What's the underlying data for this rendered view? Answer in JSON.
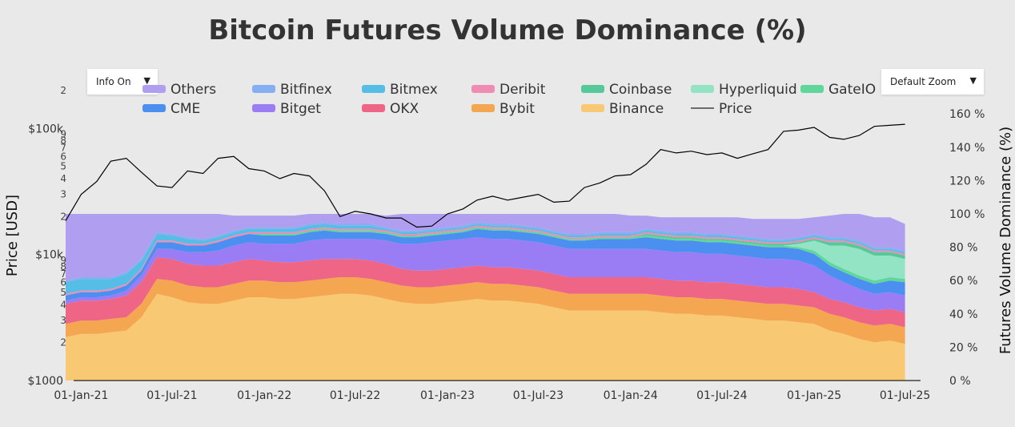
{
  "controls": {
    "info_label": "Info On",
    "zoom_label": "Default Zoom",
    "caret": "▼"
  },
  "colors": {
    "Others": "#b09ff0",
    "Bitfinex": "#86aef2",
    "Bitmex": "#56bde6",
    "Deribit": "#f08cb4",
    "Coinbase": "#55c99a",
    "Hyperliquid": "#93e4c4",
    "GateIO": "#5ed69c",
    "CME": "#4b8ff0",
    "Bitget": "#9a7cf5",
    "OKX": "#ef6585",
    "Bybit": "#f5a650",
    "Binance": "#f8c872",
    "Price": "#000000",
    "background": "#e9e9e9"
  },
  "chart_data": {
    "type": "area",
    "title": "Bitcoin Futures Volume Dominance (%)",
    "stacked": true,
    "legend_position": "top",
    "legend": [
      "Others",
      "Bitfinex",
      "Bitmex",
      "Deribit",
      "Coinbase",
      "Hyperliquid",
      "GateIO",
      "CME",
      "Bitget",
      "OKX",
      "Bybit",
      "Binance",
      "Price"
    ],
    "y_left": {
      "label": "Price [USD]",
      "scale": "log",
      "range": [
        1000,
        200000
      ],
      "major_ticks": [
        {
          "value": 1000,
          "label": "$1000"
        },
        {
          "value": 10000,
          "label": "$10k"
        },
        {
          "value": 100000,
          "label": "$100k"
        }
      ],
      "minor_ticks": [
        {
          "value": 2000,
          "label": "2"
        },
        {
          "value": 3000,
          "label": "3"
        },
        {
          "value": 4000,
          "label": "4"
        },
        {
          "value": 5000,
          "label": "5"
        },
        {
          "value": 6000,
          "label": "6"
        },
        {
          "value": 7000,
          "label": "7"
        },
        {
          "value": 8000,
          "label": "8"
        },
        {
          "value": 9000,
          "label": "9"
        },
        {
          "value": 20000,
          "label": "2"
        },
        {
          "value": 30000,
          "label": "3"
        },
        {
          "value": 40000,
          "label": "4"
        },
        {
          "value": 50000,
          "label": "5"
        },
        {
          "value": 60000,
          "label": "6"
        },
        {
          "value": 70000,
          "label": "7"
        },
        {
          "value": 80000,
          "label": "8"
        },
        {
          "value": 90000,
          "label": "9"
        },
        {
          "value": 200000,
          "label": "2"
        }
      ]
    },
    "y_right": {
      "label": "Futures Volume Dominance (%)",
      "range": [
        0,
        160
      ],
      "ticks": [
        {
          "value": 0,
          "label": "0 %"
        },
        {
          "value": 20,
          "label": "20 %"
        },
        {
          "value": 40,
          "label": "40 %"
        },
        {
          "value": 60,
          "label": "60 %"
        },
        {
          "value": 80,
          "label": "80 %"
        },
        {
          "value": 100,
          "label": "100 %"
        },
        {
          "value": 120,
          "label": "120 %"
        },
        {
          "value": 140,
          "label": "140 %"
        },
        {
          "value": 160,
          "label": "160 %"
        }
      ]
    },
    "x_range": [
      "2020-12-01",
      "2025-08-01"
    ],
    "x_ticks": [
      {
        "date": "2021-01-01",
        "label": "01-Jan-21"
      },
      {
        "date": "2021-07-01",
        "label": "01-Jul-21"
      },
      {
        "date": "2022-01-01",
        "label": "01-Jan-22"
      },
      {
        "date": "2022-07-01",
        "label": "01-Jul-22"
      },
      {
        "date": "2023-01-01",
        "label": "01-Jan-23"
      },
      {
        "date": "2023-07-01",
        "label": "01-Jul-23"
      },
      {
        "date": "2024-01-01",
        "label": "01-Jan-24"
      },
      {
        "date": "2024-07-01",
        "label": "01-Jul-24"
      },
      {
        "date": "2025-01-01",
        "label": "01-Jan-25"
      },
      {
        "date": "2025-07-01",
        "label": "01-Jul-25"
      }
    ],
    "dates": [
      "2020-12-01",
      "2021-01-01",
      "2021-02-01",
      "2021-03-01",
      "2021-04-01",
      "2021-05-01",
      "2021-06-01",
      "2021-07-01",
      "2021-08-01",
      "2021-09-01",
      "2021-10-01",
      "2021-11-01",
      "2021-12-01",
      "2022-01-01",
      "2022-02-01",
      "2022-03-01",
      "2022-04-01",
      "2022-05-01",
      "2022-06-01",
      "2022-07-01",
      "2022-08-01",
      "2022-09-01",
      "2022-10-01",
      "2022-11-01",
      "2022-12-01",
      "2023-01-01",
      "2023-02-01",
      "2023-03-01",
      "2023-04-01",
      "2023-05-01",
      "2023-06-01",
      "2023-07-01",
      "2023-08-01",
      "2023-09-01",
      "2023-10-01",
      "2023-11-01",
      "2023-12-01",
      "2024-01-01",
      "2024-02-01",
      "2024-03-01",
      "2024-04-01",
      "2024-05-01",
      "2024-06-01",
      "2024-07-01",
      "2024-08-01",
      "2024-09-01",
      "2024-10-01",
      "2024-11-01",
      "2024-12-01",
      "2025-01-01",
      "2025-02-01",
      "2025-03-01",
      "2025-04-01",
      "2025-05-01",
      "2025-06-01",
      "2025-07-01"
    ],
    "series": [
      {
        "name": "Binance",
        "values": [
          26,
          28,
          28,
          29,
          30,
          38,
          52,
          50,
          47,
          46,
          46,
          48,
          50,
          50,
          49,
          49,
          50,
          51,
          52,
          52,
          51,
          49,
          47,
          46,
          46,
          47,
          48,
          49,
          48,
          48,
          47,
          46,
          44,
          42,
          42,
          42,
          42,
          42,
          42,
          41,
          40,
          40,
          39,
          39,
          38,
          37,
          36,
          36,
          35,
          34,
          30,
          28,
          25,
          23,
          24,
          22
        ]
      },
      {
        "name": "Bybit",
        "values": [
          8,
          8,
          8,
          8,
          8,
          8,
          9,
          10,
          10,
          10,
          10,
          10,
          10,
          10,
          10,
          10,
          10,
          10,
          10,
          10,
          10,
          10,
          10,
          10,
          10,
          10,
          10,
          10,
          10,
          10,
          10,
          10,
          10,
          10,
          10,
          10,
          10,
          10,
          10,
          10,
          10,
          10,
          10,
          10,
          10,
          10,
          10,
          10,
          10,
          10,
          10,
          10,
          10,
          10,
          10,
          10
        ]
      },
      {
        "name": "OKX",
        "values": [
          12,
          12,
          12,
          12,
          13,
          13,
          13,
          13,
          13,
          13,
          13,
          13,
          13,
          12,
          12,
          12,
          12,
          12,
          11,
          11,
          11,
          11,
          10,
          10,
          10,
          10,
          10,
          10,
          10,
          10,
          10,
          10,
          10,
          10,
          10,
          10,
          10,
          10,
          10,
          10,
          10,
          10,
          10,
          10,
          10,
          10,
          10,
          10,
          10,
          9,
          9,
          9,
          9,
          9,
          9,
          9
        ]
      },
      {
        "name": "Bitget",
        "values": [
          2,
          2,
          2,
          2,
          3,
          4,
          5,
          6,
          7,
          8,
          9,
          10,
          10,
          10,
          11,
          11,
          12,
          12,
          12,
          12,
          13,
          14,
          15,
          16,
          17,
          17,
          17,
          17,
          17,
          17,
          17,
          17,
          17,
          17,
          17,
          17,
          17,
          17,
          17,
          17,
          17,
          17,
          17,
          17,
          17,
          17,
          17,
          17,
          17,
          16,
          14,
          12,
          11,
          10,
          10,
          10
        ]
      },
      {
        "name": "CME",
        "values": [
          3,
          3,
          3,
          3,
          3,
          3,
          4,
          4,
          4,
          4,
          5,
          5,
          5,
          5,
          5,
          5,
          5,
          5,
          4,
          4,
          4,
          4,
          4,
          4,
          4,
          4,
          4,
          5,
          5,
          5,
          5,
          5,
          5,
          5,
          5,
          6,
          6,
          6,
          7,
          7,
          7,
          7,
          7,
          7,
          7,
          7,
          7,
          7,
          7,
          7,
          6,
          6,
          6,
          6,
          7,
          8
        ]
      },
      {
        "name": "GateIO",
        "values": [
          0,
          0,
          0,
          0,
          0,
          0,
          0,
          0,
          0,
          0,
          0,
          0,
          0,
          1,
          1,
          1,
          1,
          1,
          1,
          1,
          1,
          1,
          1,
          1,
          1,
          1,
          1,
          1,
          1,
          1,
          1,
          1,
          1,
          1,
          1,
          1,
          1,
          1,
          1,
          1,
          1,
          1,
          1,
          1,
          1,
          1,
          1,
          1,
          1,
          2,
          2,
          2,
          2,
          2,
          2,
          2
        ]
      },
      {
        "name": "Hyperliquid",
        "values": [
          0,
          0,
          0,
          0,
          0,
          0,
          0,
          0,
          0,
          0,
          0,
          0,
          0,
          0,
          0,
          0,
          0,
          0,
          0,
          0,
          0,
          0,
          0,
          0,
          0,
          0,
          0,
          0,
          0,
          0,
          0,
          0,
          0,
          0,
          0,
          0,
          0,
          0,
          0,
          0,
          0,
          0,
          0,
          0,
          0,
          0,
          0,
          0,
          2,
          6,
          10,
          14,
          16,
          15,
          13,
          12
        ]
      },
      {
        "name": "Coinbase",
        "values": [
          0,
          0,
          0,
          0,
          0,
          0,
          0,
          0,
          0,
          0,
          0,
          0,
          0,
          0,
          0,
          0,
          0,
          0,
          0,
          0,
          0,
          0,
          0,
          0,
          0,
          0,
          0,
          0,
          0,
          0,
          0,
          0,
          0,
          0,
          0,
          0,
          0,
          0,
          1,
          1,
          1,
          1,
          1,
          1,
          1,
          1,
          1,
          1,
          1,
          1,
          2,
          2,
          2,
          2,
          2,
          2
        ]
      },
      {
        "name": "Deribit",
        "values": [
          1,
          1,
          1,
          1,
          1,
          1,
          1,
          1,
          1,
          1,
          1,
          1,
          1,
          1,
          1,
          1,
          1,
          1,
          1,
          1,
          1,
          1,
          1,
          1,
          1,
          1,
          1,
          1,
          1,
          1,
          1,
          1,
          1,
          1,
          1,
          1,
          1,
          1,
          1,
          1,
          1,
          1,
          1,
          1,
          1,
          1,
          1,
          1,
          1,
          1,
          1,
          1,
          1,
          1,
          1,
          1
        ]
      },
      {
        "name": "Bitmex",
        "values": [
          7,
          7,
          7,
          6,
          6,
          5,
          4,
          3,
          3,
          2,
          2,
          2,
          2,
          2,
          2,
          2,
          2,
          2,
          2,
          2,
          2,
          1,
          1,
          1,
          1,
          1,
          1,
          1,
          1,
          1,
          1,
          1,
          1,
          1,
          1,
          1,
          1,
          1,
          1,
          1,
          1,
          1,
          1,
          1,
          1,
          1,
          1,
          1,
          1,
          1,
          1,
          1,
          1,
          1,
          1,
          1
        ]
      },
      {
        "name": "Bitfinex",
        "values": [
          1,
          1,
          1,
          1,
          1,
          1,
          1,
          1,
          1,
          1,
          1,
          1,
          1,
          1,
          1,
          1,
          1,
          1,
          1,
          1,
          1,
          1,
          1,
          1,
          1,
          1,
          1,
          1,
          1,
          1,
          1,
          1,
          1,
          1,
          1,
          1,
          1,
          1,
          1,
          1,
          1,
          1,
          1,
          1,
          1,
          1,
          1,
          1,
          1,
          1,
          1,
          1,
          1,
          1,
          1,
          1
        ]
      },
      {
        "name": "Others",
        "values": [
          40,
          38,
          38,
          38,
          35,
          27,
          11,
          12,
          14,
          15,
          13,
          9,
          7,
          7,
          7,
          7,
          6,
          5,
          6,
          6,
          6,
          7,
          10,
          10,
          9,
          8,
          7,
          5,
          6,
          6,
          7,
          8,
          10,
          12,
          12,
          11,
          11,
          10,
          8,
          8,
          9,
          9,
          10,
          10,
          11,
          11,
          12,
          12,
          11,
          10,
          13,
          14,
          16,
          18,
          18,
          16
        ]
      },
      {
        "name": "Price",
        "axis": "left",
        "values": [
          18500,
          30000,
          38000,
          55000,
          58000,
          45000,
          35000,
          34000,
          46000,
          44000,
          58000,
          60000,
          48000,
          46000,
          40000,
          44000,
          42000,
          32000,
          20000,
          22000,
          21000,
          19500,
          19500,
          16500,
          16800,
          21000,
          23000,
          27000,
          29000,
          27000,
          28500,
          30000,
          26000,
          26500,
          34000,
          37000,
          42000,
          43000,
          52000,
          68000,
          64000,
          66000,
          62000,
          64000,
          58000,
          63000,
          68000,
          95000,
          97000,
          102000,
          85000,
          82000,
          88000,
          104000,
          106000,
          108000
        ]
      }
    ]
  }
}
